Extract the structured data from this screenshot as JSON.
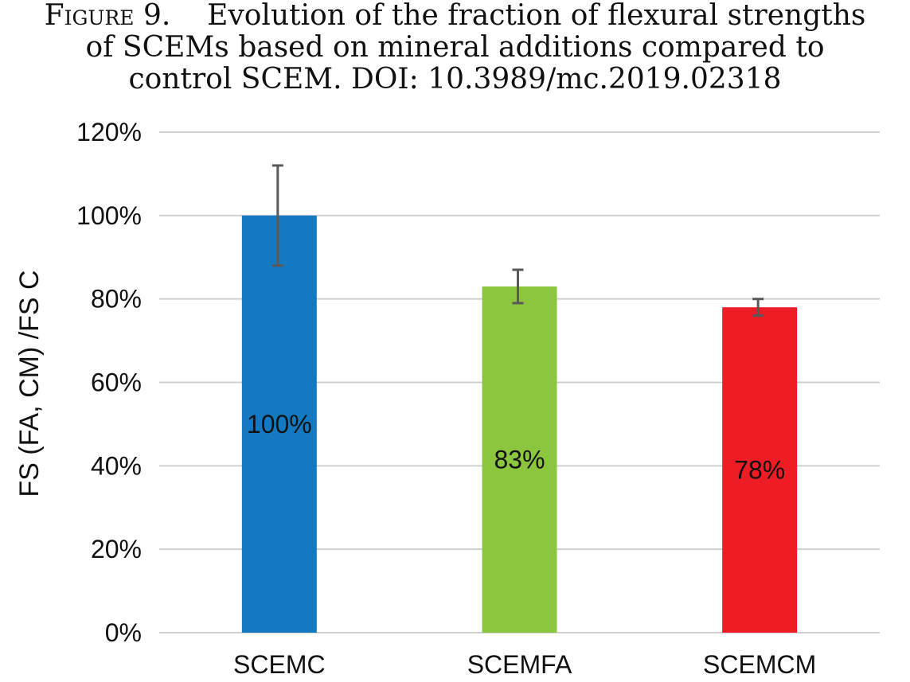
{
  "caption": {
    "figure_label": "Figure 9.",
    "line1": "Evolution of the fraction of flexural strengths",
    "line2": "of SCEMs based on mineral additions compared to",
    "line3": "control SCEM. DOI: 10.3989/mc.2019.02318"
  },
  "chart_data": {
    "type": "bar",
    "title": "",
    "xlabel": "",
    "ylabel": "FS (FA, CM) /FS C",
    "ylim": [
      0,
      120
    ],
    "yticks": [
      0,
      20,
      40,
      60,
      80,
      100,
      120
    ],
    "ytick_labels": [
      "0%",
      "20%",
      "40%",
      "60%",
      "80%",
      "100%",
      "120%"
    ],
    "grid": true,
    "categories": [
      "SCEMC",
      "SCEMFA",
      "SCEMCM"
    ],
    "values": [
      100,
      83,
      78
    ],
    "data_labels": [
      "100%",
      "83%",
      "78%"
    ],
    "error_low": [
      88,
      79,
      76
    ],
    "error_high": [
      112,
      87,
      80
    ],
    "colors": [
      "#1479c1",
      "#8cc63f",
      "#ee1c25"
    ],
    "grid_color": "#cfcfcf",
    "errorbar_color": "#595959"
  }
}
